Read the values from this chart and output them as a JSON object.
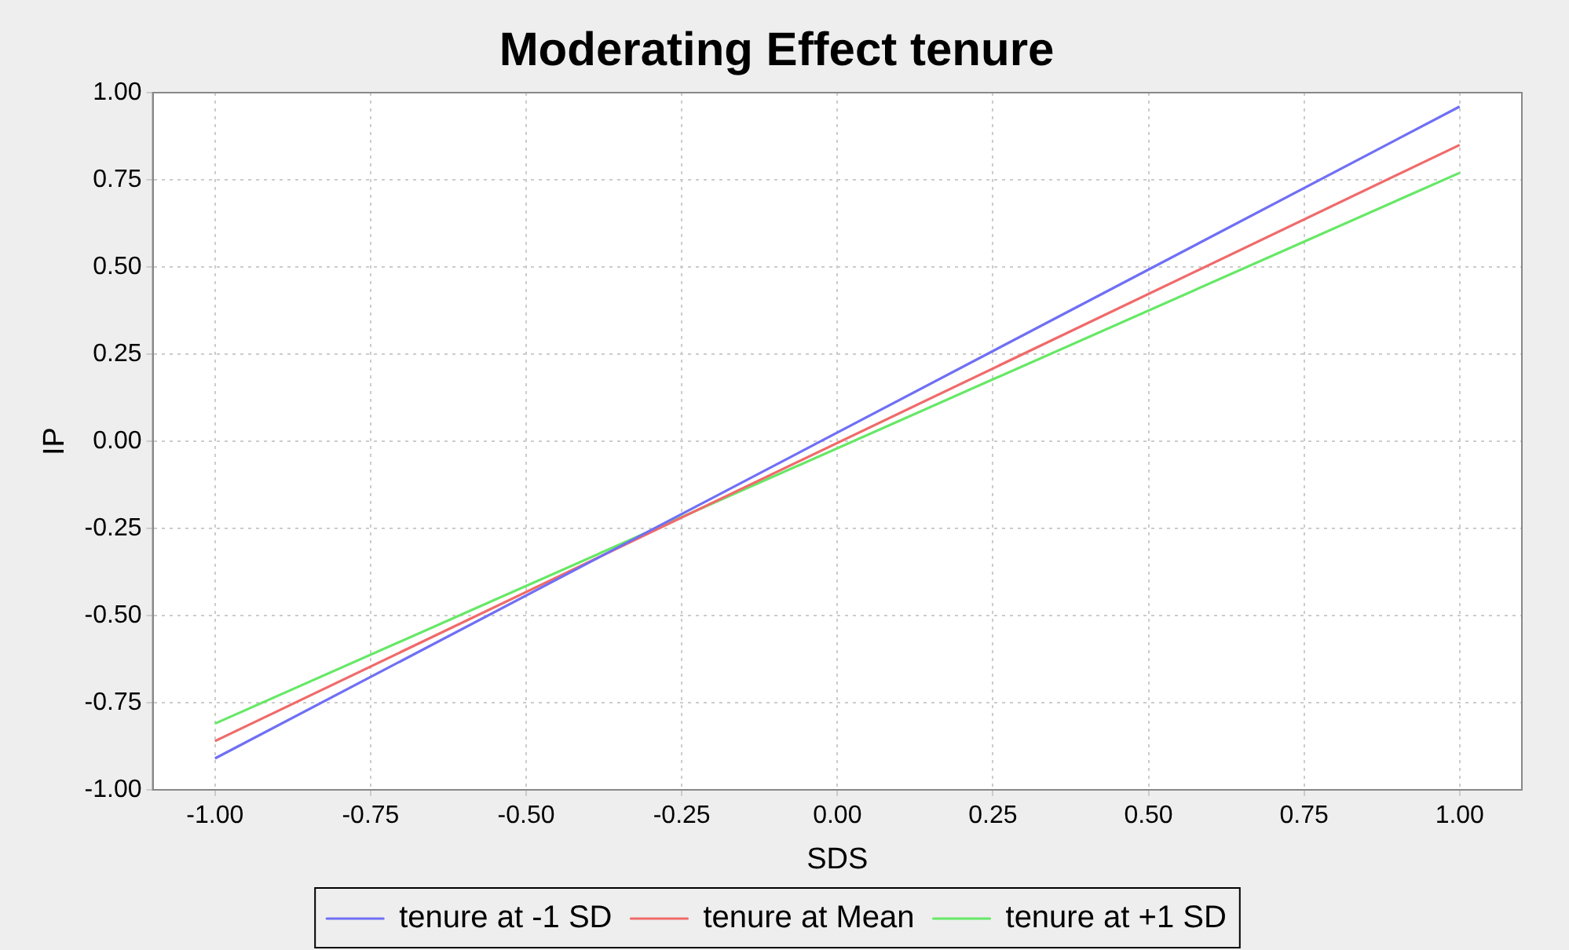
{
  "chart_data": {
    "type": "line",
    "title": "Moderating Effect tenure",
    "xlabel": "SDS",
    "ylabel": "IP",
    "x": [
      -1,
      1
    ],
    "series": [
      {
        "name": "tenure at -1 SD",
        "color": "#6f6ff5",
        "values": [
          -0.91,
          0.96
        ]
      },
      {
        "name": "tenure at Mean",
        "color": "#f06a6a",
        "values": [
          -0.86,
          0.85
        ]
      },
      {
        "name": "tenure at +1 SD",
        "color": "#66e866",
        "values": [
          -0.81,
          0.77
        ]
      }
    ],
    "xlim": [
      -1.1,
      1.1
    ],
    "xticks": [
      {
        "value": -1,
        "label": "-1.00"
      },
      {
        "value": -0.75,
        "label": "-0.75"
      },
      {
        "value": -0.5,
        "label": "-0.50"
      },
      {
        "value": -0.25,
        "label": "-0.25"
      },
      {
        "value": 0,
        "label": "0.00"
      },
      {
        "value": 0.25,
        "label": "0.25"
      },
      {
        "value": 0.5,
        "label": "0.50"
      },
      {
        "value": 0.75,
        "label": "0.75"
      },
      {
        "value": 1,
        "label": "1.00"
      }
    ],
    "ylim": [
      -1,
      1
    ],
    "yticks": [
      {
        "value": -1,
        "label": "-1.00"
      },
      {
        "value": -0.75,
        "label": "-0.75"
      },
      {
        "value": -0.5,
        "label": "-0.50"
      },
      {
        "value": -0.25,
        "label": "-0.25"
      },
      {
        "value": 0,
        "label": "0.00"
      },
      {
        "value": 0.25,
        "label": "0.25"
      },
      {
        "value": 0.5,
        "label": "0.50"
      },
      {
        "value": 0.75,
        "label": "0.75"
      },
      {
        "value": 1,
        "label": "1.00"
      }
    ],
    "grid": true,
    "legend": "bottom",
    "marker": "none",
    "line_style": "solid"
  }
}
